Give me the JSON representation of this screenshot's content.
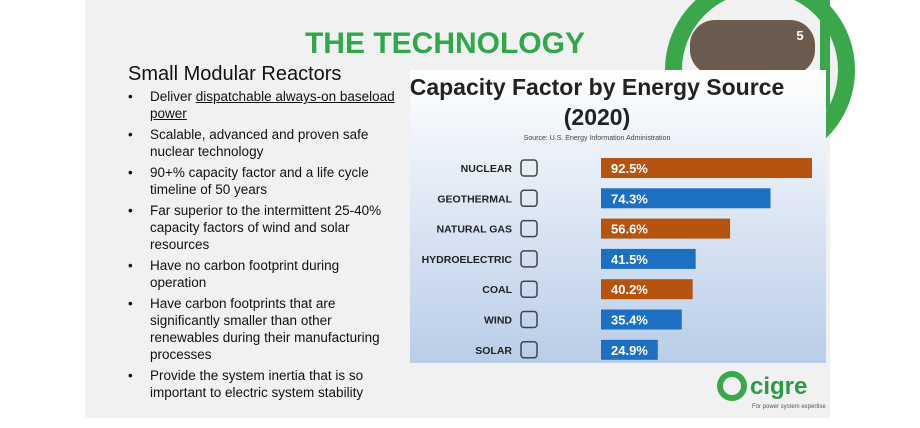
{
  "slide": {
    "title": "THE TECHNOLOGY",
    "page_number": "5",
    "subtitle": "Small Modular Reactors",
    "bullets": [
      {
        "text": "Deliver",
        "underlined": "dispatchable always-on baseload power"
      },
      "Scalable, advanced and proven safe nuclear technology",
      "90+% capacity factor and a life cycle timeline of 50 years",
      "Far superior to the intermittent 25-40% capacity factors of wind and solar resources",
      "Have no carbon footprint during operation",
      "Have carbon footprints that are significantly smaller than other renewables during their manufacturing processes",
      "Provide the system inertia that is so important to electric system stability"
    ],
    "logo": {
      "name": "cigre",
      "tagline": "For power system expertise"
    }
  },
  "chart_data": {
    "type": "bar",
    "orientation": "horizontal",
    "title": "Capacity Factor by Energy Source (2020)",
    "source": "Source: U.S. Energy Information Administration",
    "categories": [
      "NUCLEAR",
      "GEOTHERMAL",
      "NATURAL GAS",
      "HYDROELECTRIC",
      "COAL",
      "WIND",
      "SOLAR"
    ],
    "values": [
      92.5,
      74.3,
      56.6,
      41.5,
      40.2,
      35.4,
      24.9
    ],
    "value_labels": [
      "92.5%",
      "74.3%",
      "56.6%",
      "41.5%",
      "40.2%",
      "35.4%",
      "24.9%"
    ],
    "colors": [
      "#b5530f",
      "#1d6fc2",
      "#b5530f",
      "#1d6fc2",
      "#b5530f",
      "#1d6fc2",
      "#1d6fc2"
    ]
  }
}
